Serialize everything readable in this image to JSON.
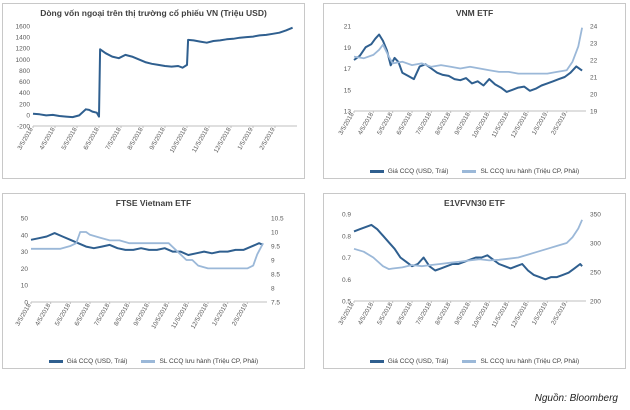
{
  "source": "Nguồn: Bloomberg",
  "colors": {
    "dark": "#2f5f8f",
    "light": "#9bb8d8",
    "axis": "#bfbfbf",
    "tick": "#595959"
  },
  "chart_data": [
    {
      "id": "c1",
      "type": "line",
      "title": "Dòng vốn ngoại trên thị trường cổ phiếu VN (Triệu USD)",
      "x_labels": [
        "3/5/2018",
        "4/5/2018",
        "5/5/2018",
        "6/5/2018",
        "7/5/2018",
        "8/5/2018",
        "9/5/2018",
        "10/5/2018",
        "11/5/2018",
        "12/5/2018",
        "1/5/2019",
        "2/5/2019"
      ],
      "xlim": [
        0,
        12
      ],
      "ylim": [
        -200,
        1600
      ],
      "yticks": [
        -200,
        0,
        200,
        400,
        600,
        800,
        1000,
        1200,
        1400,
        1600
      ],
      "legend": [],
      "series": [
        {
          "axis": "left",
          "color": "dark",
          "x": [
            0,
            0.3,
            0.6,
            0.9,
            1.2,
            1.5,
            1.8,
            2.1,
            2.4,
            2.55,
            2.7,
            2.9,
            3.0,
            3.05,
            3.3,
            3.6,
            3.9,
            4.2,
            4.5,
            4.8,
            5.1,
            5.4,
            5.7,
            6.0,
            6.3,
            6.6,
            6.8,
            7.0,
            7.05,
            7.3,
            7.6,
            7.9,
            8.2,
            8.5,
            8.8,
            9.1,
            9.4,
            9.7,
            10.0,
            10.3,
            10.6,
            10.9,
            11.2,
            11.5,
            11.8
          ],
          "y": [
            20,
            10,
            -10,
            0,
            -20,
            -30,
            -40,
            -10,
            100,
            90,
            60,
            40,
            -30,
            1180,
            1110,
            1050,
            1020,
            1080,
            1050,
            1000,
            950,
            920,
            900,
            880,
            870,
            880,
            850,
            900,
            1350,
            1340,
            1320,
            1300,
            1330,
            1340,
            1360,
            1370,
            1390,
            1400,
            1410,
            1430,
            1440,
            1460,
            1480,
            1520,
            1570
          ]
        }
      ]
    },
    {
      "id": "c2",
      "type": "line",
      "title": "VNM ETF",
      "x_labels": [
        "3/5/2018",
        "4/5/2018",
        "5/5/2018",
        "6/5/2018",
        "7/5/2018",
        "8/5/2018",
        "9/5/2018",
        "10/5/2018",
        "11/5/2018",
        "12/5/2018",
        "1/5/2019",
        "2/5/2019"
      ],
      "xlim": [
        0,
        12
      ],
      "ylim": [
        13,
        21
      ],
      "yticks": [
        13,
        15,
        17,
        19,
        21
      ],
      "y2lim": [
        19,
        24
      ],
      "y2ticks": [
        19,
        20,
        21,
        22,
        23,
        24
      ],
      "legend": [
        "Giá CCQ (USD, Trái)",
        "SL CCQ lưu hành (Triệu CP, Phải)"
      ],
      "series": [
        {
          "name": "Giá CCQ (USD, Trái)",
          "axis": "left",
          "color": "dark",
          "x": [
            0,
            0.3,
            0.6,
            0.9,
            1.1,
            1.3,
            1.5,
            1.7,
            1.9,
            2.1,
            2.3,
            2.5,
            2.8,
            3.1,
            3.4,
            3.7,
            4.0,
            4.3,
            4.6,
            4.9,
            5.2,
            5.5,
            5.8,
            6.1,
            6.4,
            6.7,
            7.0,
            7.3,
            7.6,
            7.9,
            8.2,
            8.5,
            8.8,
            9.1,
            9.4,
            9.7,
            10.0,
            10.3,
            10.6,
            10.9,
            11.2,
            11.5,
            11.8
          ],
          "y": [
            17.8,
            18.2,
            19.0,
            19.3,
            19.8,
            20.2,
            19.6,
            18.7,
            17.3,
            18.0,
            17.6,
            16.6,
            16.3,
            16.0,
            17.2,
            17.4,
            17.0,
            16.6,
            16.4,
            16.3,
            16.0,
            15.9,
            16.1,
            15.6,
            15.8,
            15.4,
            16.0,
            15.5,
            15.2,
            14.8,
            15.0,
            15.2,
            15.3,
            14.9,
            15.1,
            15.4,
            15.6,
            15.8,
            16.0,
            16.2,
            16.6,
            17.2,
            16.8
          ]
        },
        {
          "name": "SL CCQ lưu hành (Triệu CP, Phải)",
          "axis": "right",
          "color": "light",
          "x": [
            0,
            0.5,
            1.0,
            1.3,
            1.5,
            1.8,
            2.0,
            2.5,
            3.0,
            3.5,
            4.0,
            4.5,
            5.0,
            5.5,
            6.0,
            6.5,
            7.0,
            7.5,
            8.0,
            8.5,
            9.0,
            9.5,
            10.0,
            10.5,
            11.0,
            11.3,
            11.6,
            11.8
          ],
          "y": [
            22.2,
            22.1,
            22.3,
            22.6,
            22.9,
            22.2,
            21.8,
            21.9,
            21.7,
            21.8,
            21.6,
            21.7,
            21.6,
            21.5,
            21.6,
            21.5,
            21.4,
            21.3,
            21.3,
            21.2,
            21.2,
            21.2,
            21.2,
            21.3,
            21.4,
            21.9,
            22.8,
            23.9
          ]
        }
      ]
    },
    {
      "id": "c3",
      "type": "line",
      "title": "FTSE Vietnam ETF",
      "x_labels": [
        "3/5/2018",
        "4/5/2018",
        "5/5/2018",
        "6/5/2018",
        "7/5/2018",
        "8/5/2018",
        "9/5/2018",
        "10/5/2018",
        "11/5/2018",
        "12/5/2018",
        "1/5/2019",
        "2/5/2019"
      ],
      "xlim": [
        0,
        12
      ],
      "ylim": [
        0,
        50
      ],
      "yticks": [
        0,
        10,
        20,
        30,
        40,
        50
      ],
      "y2lim": [
        7.5,
        10.5
      ],
      "y2ticks": [
        7.5,
        8,
        8.5,
        9,
        9.5,
        10,
        10.5
      ],
      "legend": [
        "Giá CCQ (USD, Trái)",
        "SL CCQ lưu hành (Triệu CP, Phải)"
      ],
      "series": [
        {
          "name": "Giá CCQ (USD, Trái)",
          "axis": "left",
          "color": "dark",
          "x": [
            0,
            0.4,
            0.8,
            1.2,
            1.6,
            2.0,
            2.4,
            2.8,
            3.2,
            3.6,
            4.0,
            4.4,
            4.8,
            5.2,
            5.6,
            6.0,
            6.4,
            6.8,
            7.2,
            7.6,
            8.0,
            8.4,
            8.8,
            9.2,
            9.6,
            10.0,
            10.4,
            10.8,
            11.2,
            11.6,
            11.8
          ],
          "y": [
            37,
            38,
            39,
            41,
            39,
            37,
            35,
            33,
            32,
            33,
            34,
            32,
            31,
            31,
            32,
            31,
            31,
            32,
            30,
            30,
            28,
            29,
            30,
            29,
            30,
            30,
            31,
            31,
            33,
            35,
            34
          ]
        },
        {
          "name": "SL CCQ lưu hành (Triệu CP, Phải)",
          "axis": "right",
          "color": "light",
          "x": [
            0,
            0.5,
            1.0,
            1.5,
            2.0,
            2.3,
            2.5,
            2.8,
            3.0,
            3.5,
            4.0,
            4.5,
            5.0,
            5.5,
            6.0,
            6.5,
            7.0,
            7.3,
            7.6,
            7.9,
            8.2,
            8.5,
            9.0,
            9.5,
            10.0,
            10.5,
            11.0,
            11.3,
            11.5,
            11.8
          ],
          "y": [
            9.4,
            9.4,
            9.4,
            9.4,
            9.5,
            9.6,
            10.0,
            10.0,
            9.9,
            9.8,
            9.7,
            9.7,
            9.6,
            9.6,
            9.6,
            9.6,
            9.6,
            9.4,
            9.2,
            9.0,
            9.0,
            8.8,
            8.7,
            8.7,
            8.7,
            8.7,
            8.7,
            8.8,
            9.2,
            9.6
          ]
        }
      ]
    },
    {
      "id": "c4",
      "type": "line",
      "title": "E1VFVN30 ETF",
      "x_labels": [
        "3/5/2018",
        "4/5/2018",
        "5/5/2018",
        "6/5/2018",
        "7/5/2018",
        "8/5/2018",
        "9/5/2018",
        "10/5/2018",
        "11/5/2018",
        "12/5/2018",
        "1/5/2019",
        "2/5/2019"
      ],
      "xlim": [
        0,
        12
      ],
      "ylim": [
        0.5,
        0.9
      ],
      "yticks": [
        0.5,
        0.6,
        0.7,
        0.8,
        0.9
      ],
      "y2lim": [
        200,
        350
      ],
      "y2ticks": [
        200,
        250,
        300,
        350
      ],
      "legend": [
        "Giá CCQ (USD, Trái)",
        "SL CCQ lưu hành (Triệu CP, Phải)"
      ],
      "series": [
        {
          "name": "Giá CCQ (USD, Trái)",
          "axis": "left",
          "color": "dark",
          "x": [
            0,
            0.3,
            0.6,
            0.9,
            1.2,
            1.5,
            1.8,
            2.1,
            2.4,
            2.7,
            3.0,
            3.3,
            3.6,
            3.9,
            4.2,
            4.5,
            4.8,
            5.1,
            5.4,
            5.7,
            6.0,
            6.3,
            6.6,
            6.9,
            7.2,
            7.5,
            7.8,
            8.1,
            8.4,
            8.7,
            9.0,
            9.3,
            9.6,
            9.9,
            10.2,
            10.5,
            10.8,
            11.1,
            11.4,
            11.7,
            11.8
          ],
          "y": [
            0.82,
            0.83,
            0.84,
            0.85,
            0.83,
            0.8,
            0.77,
            0.74,
            0.7,
            0.68,
            0.66,
            0.67,
            0.7,
            0.66,
            0.64,
            0.65,
            0.66,
            0.67,
            0.67,
            0.68,
            0.69,
            0.7,
            0.7,
            0.71,
            0.69,
            0.67,
            0.66,
            0.65,
            0.66,
            0.67,
            0.64,
            0.62,
            0.61,
            0.6,
            0.61,
            0.61,
            0.62,
            0.63,
            0.65,
            0.67,
            0.66
          ]
        },
        {
          "name": "SL CCQ lưu hành (Triệu CP, Phải)",
          "axis": "right",
          "color": "light",
          "x": [
            0,
            0.5,
            1.0,
            1.5,
            1.8,
            2.0,
            2.5,
            3.0,
            3.5,
            4.0,
            4.5,
            5.0,
            5.5,
            6.0,
            6.5,
            7.0,
            7.5,
            8.0,
            8.5,
            9.0,
            9.5,
            10.0,
            10.5,
            11.0,
            11.3,
            11.6,
            11.8
          ],
          "y": [
            290,
            285,
            275,
            260,
            255,
            256,
            258,
            262,
            260,
            262,
            264,
            266,
            268,
            270,
            272,
            270,
            271,
            273,
            275,
            280,
            285,
            290,
            295,
            300,
            310,
            325,
            340
          ]
        }
      ]
    }
  ]
}
